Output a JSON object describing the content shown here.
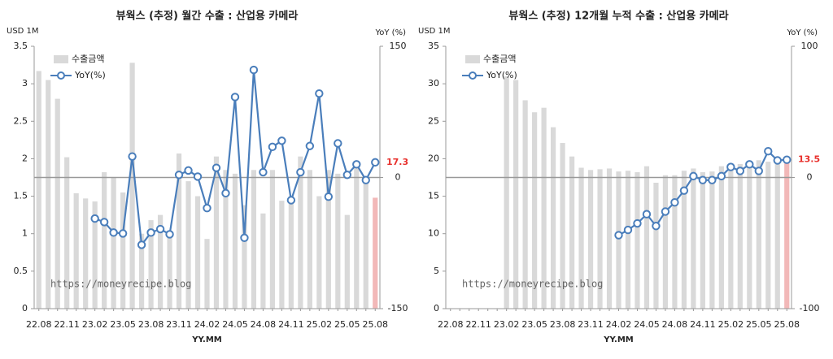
{
  "chart_data": [
    {
      "type": "bar_line",
      "title": "뷰웍스 (추정) 월간 수출 : 산업용 카메라",
      "ylabel": "USD 1M",
      "y2label": "YoY (%)",
      "xlabel": "YY.MM",
      "annotation": "https://moneyrecipe.blog",
      "categories": [
        "22.08",
        null,
        null,
        "22.11",
        null,
        null,
        "23.02",
        null,
        null,
        "23.05",
        null,
        null,
        "23.08",
        null,
        null,
        "23.11",
        null,
        null,
        "24.02",
        null,
        null,
        "24.05",
        null,
        null,
        "24.08",
        null,
        null,
        "24.11",
        null,
        null,
        "25.02",
        null,
        null,
        "25.05",
        null,
        null,
        "25.08"
      ],
      "series": [
        {
          "name": "수출금액",
          "color": "#d9d9d9",
          "highlight_color": "#f2b8b8",
          "values": [
            3.17,
            3.05,
            2.8,
            2.02,
            1.54,
            1.47,
            1.43,
            1.82,
            1.75,
            1.55,
            3.28,
            1.0,
            1.18,
            1.25,
            0.97,
            2.07,
            1.7,
            1.5,
            0.93,
            2.03,
            1.85,
            1.8,
            1.38,
            1.85,
            1.27,
            1.85,
            1.44,
            1.5,
            2.03,
            1.85,
            1.5,
            1.85,
            1.8,
            1.25,
            1.9,
            1.7,
            1.48
          ]
        },
        {
          "name": "YoY(%)",
          "color": "#4a7ebb",
          "axis": "y2",
          "values": [
            null,
            null,
            null,
            null,
            null,
            null,
            -47,
            -51,
            -63,
            -64,
            24,
            -77,
            -63,
            -59,
            -65,
            3,
            8,
            1,
            -35,
            11,
            -18,
            92,
            -69,
            123,
            6,
            35,
            42,
            -26,
            6,
            36,
            96,
            -22,
            39,
            3,
            15,
            -3,
            17.3
          ]
        }
      ],
      "ylim": [
        0,
        3.5
      ],
      "yticks": [
        0,
        0.5,
        1,
        1.5,
        2,
        2.5,
        3,
        3.5
      ],
      "y2lim": [
        -150,
        150
      ],
      "y2ticks": [
        -150,
        0,
        150
      ],
      "legend": "upper left"
    },
    {
      "type": "bar_line",
      "title": "뷰웍스 (추정) 12개월 누적 수출 : 산업용 카메라",
      "ylabel": "USD 1M",
      "y2label": "YoY (%)",
      "xlabel": "YY.MM",
      "annotation": "https://moneyrecipe.blog",
      "categories": [
        "22.08",
        null,
        null,
        "22.11",
        null,
        null,
        "23.02",
        null,
        null,
        "23.05",
        null,
        null,
        "23.08",
        null,
        null,
        "23.11",
        null,
        null,
        "24.02",
        null,
        null,
        "24.05",
        null,
        null,
        "24.08",
        null,
        null,
        "24.11",
        null,
        null,
        "25.02",
        null,
        null,
        "25.05",
        null,
        null,
        "25.08"
      ],
      "series": [
        {
          "name": "수출금액",
          "color": "#d9d9d9",
          "highlight_color": "#f2b8b8",
          "values": [
            null,
            null,
            null,
            null,
            null,
            null,
            31,
            30.5,
            27.8,
            26.2,
            26.8,
            24.2,
            22.1,
            20.3,
            18.8,
            18.5,
            18.6,
            18.7,
            18.3,
            18.4,
            18.2,
            19.0,
            16.8,
            17.8,
            17.8,
            18.4,
            18.7,
            18.2,
            18.3,
            19.0,
            19.3,
            19.3,
            19.6,
            19.8,
            19.6,
            19.8,
            19.6
          ]
        },
        {
          "name": "YoY(%)",
          "color": "#4a7ebb",
          "axis": "y2",
          "values": [
            null,
            null,
            null,
            null,
            null,
            null,
            null,
            null,
            null,
            null,
            null,
            null,
            null,
            null,
            null,
            null,
            null,
            null,
            -44,
            -40,
            -35,
            -28,
            -37,
            -26,
            -19,
            -10,
            1,
            -2,
            -2,
            1,
            8,
            5,
            10,
            5,
            20,
            13,
            13.5
          ]
        }
      ],
      "ylim": [
        0,
        35
      ],
      "yticks": [
        0,
        5,
        10,
        15,
        20,
        25,
        30,
        35
      ],
      "y2lim": [
        -100,
        100
      ],
      "y2ticks": [
        -100,
        0,
        100
      ],
      "legend": "upper left"
    }
  ]
}
